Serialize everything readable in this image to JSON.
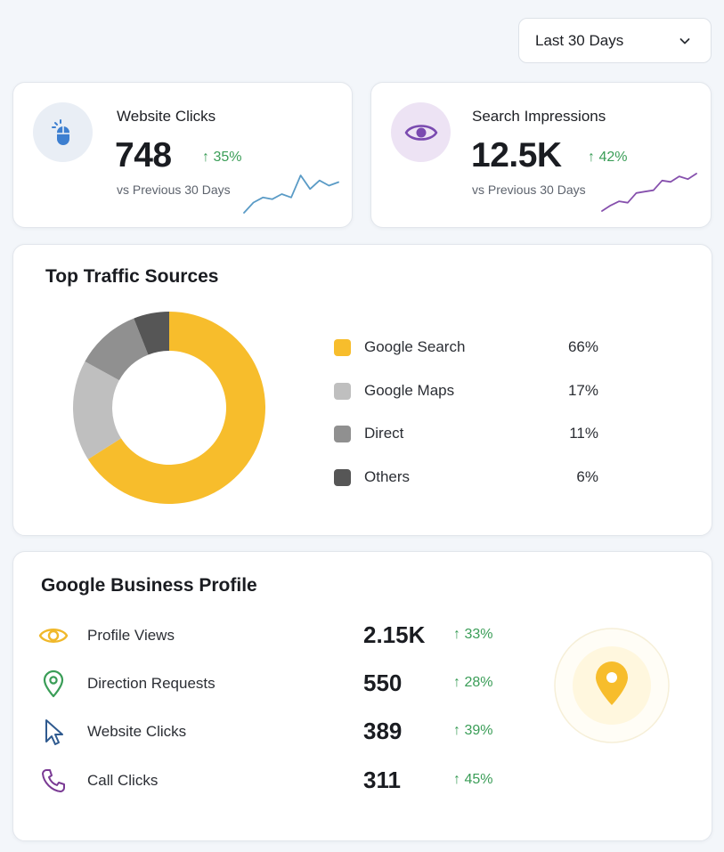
{
  "filter": {
    "period_label": "Last 30 Days"
  },
  "metrics": {
    "website_clicks": {
      "title": "Website Clicks",
      "value": "748",
      "change": "↑ 35%",
      "comparison": "vs Previous 30 Days",
      "sparkline": [
        22,
        28,
        31,
        30,
        33,
        31,
        44,
        36,
        41,
        38,
        40
      ],
      "accent": "#2f6fc4",
      "spark_color": "#5a9bc6"
    },
    "search_impressions": {
      "title": "Search Impressions",
      "value": "12.5K",
      "change": "↑ 42%",
      "comparison": "vs Previous 30 Days",
      "sparkline": [
        20,
        24,
        27,
        26,
        33,
        34,
        35,
        42,
        41,
        45,
        43,
        47
      ],
      "accent": "#7a4ab0",
      "spark_color": "#8650ad"
    }
  },
  "traffic": {
    "title": "Top Traffic Sources",
    "sources": [
      {
        "label": "Google Search",
        "value": "66%",
        "share": 66,
        "color": "#f7bd2c"
      },
      {
        "label": "Google Maps",
        "value": "17%",
        "share": 17,
        "color": "#bfbfbf"
      },
      {
        "label": "Direct",
        "value": "11%",
        "share": 11,
        "color": "#909090"
      },
      {
        "label": "Others",
        "value": "6%",
        "share": 6,
        "color": "#565656"
      }
    ]
  },
  "profile": {
    "title": "Google Business Profile",
    "rows": [
      {
        "icon": "eye-icon",
        "label": "Profile Views",
        "value": "2.15K",
        "change": "↑ 33%"
      },
      {
        "icon": "location-pin-icon",
        "label": "Direction Requests",
        "value": "550",
        "change": "↑ 28%"
      },
      {
        "icon": "cursor-icon",
        "label": "Website Clicks",
        "value": "389",
        "change": "↑ 39%"
      },
      {
        "icon": "phone-icon",
        "label": "Call Clicks",
        "value": "311",
        "change": "↑ 45%"
      }
    ],
    "positive_color": "#3a9d57"
  }
}
